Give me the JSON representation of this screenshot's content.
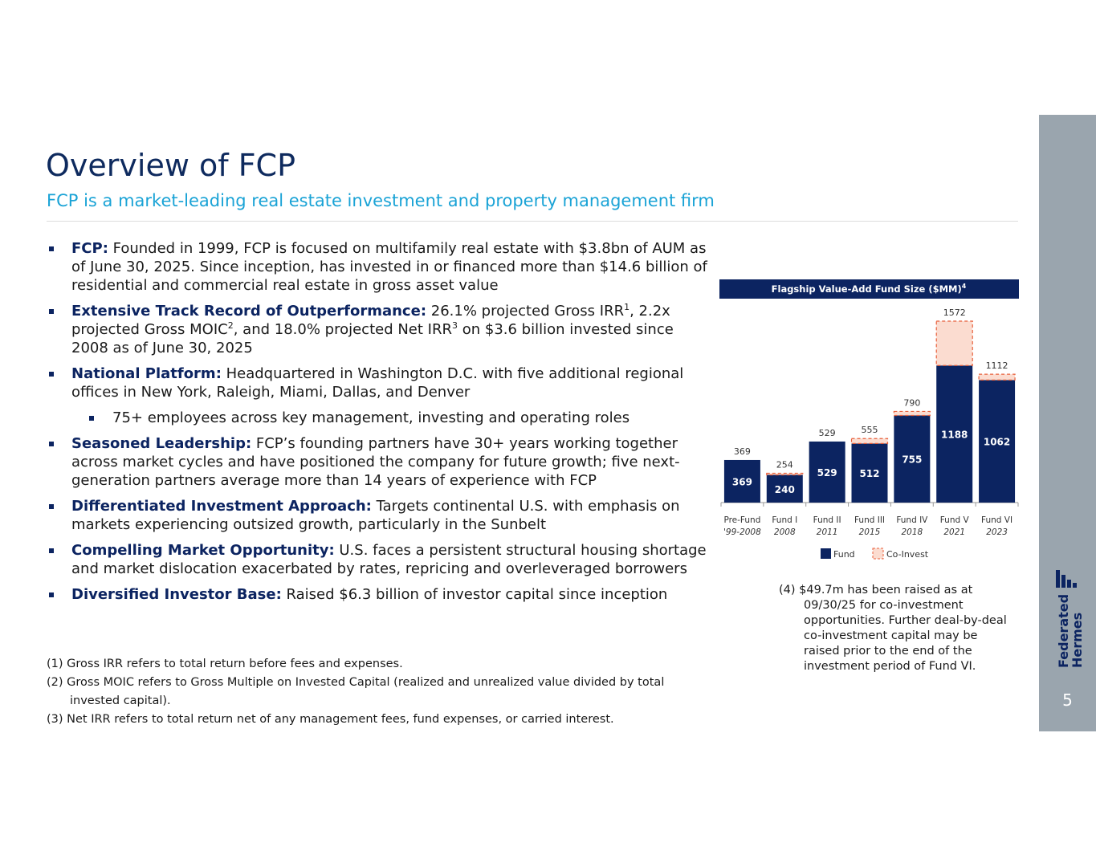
{
  "header": {
    "title": "Overview of FCP",
    "subtitle": "FCP is a market-leading real estate investment and property management firm"
  },
  "bullets": [
    {
      "lead": "FCP:",
      "text": [
        " Founded in 1999, FCP is focused on multifamily real estate with $3.8bn of AUM as of June 30, 2025. Since inception, has invested in or financed more than $14.6 billion of residential and commercial real estate in gross asset value"
      ]
    },
    {
      "lead": "Extensive Track Record of Outperformance:",
      "text": [
        " 26.1% projected Gross IRR",
        ", 2.2x projected Gross MOIC",
        ", and 18.0% projected Net IRR",
        " on $3.6 billion invested since 2008 as of June 30, 2025"
      ],
      "sups": [
        "1",
        "2",
        "3"
      ]
    },
    {
      "lead": "National Platform:",
      "text": [
        " Headquartered in Washington D.C. with five additional regional offices in New York, Raleigh, Miami, Dallas, and Denver"
      ]
    },
    {
      "sub": true,
      "text": [
        "75+ employees across key management, investing and operating roles"
      ]
    },
    {
      "lead": "Seasoned Leadership:",
      "text": [
        " FCP’s founding partners have 30+ years working together across market cycles and have positioned the company for future growth; five next-generation partners average more than 14 years of experience with FCP"
      ]
    },
    {
      "lead": "Differentiated Investment Approach:",
      "text": [
        " Targets continental U.S. with emphasis on markets experiencing outsized growth, particularly in the Sunbelt"
      ]
    },
    {
      "lead": "Compelling Market Opportunity:",
      "text": [
        " U.S. faces a persistent structural housing shortage and market dislocation exacerbated by rates, repricing and overleveraged borrowers"
      ]
    },
    {
      "lead": "Diversified Investor Base:",
      "text": [
        " Raised $6.3 billion of investor capital since inception"
      ]
    }
  ],
  "footnotes": [
    "(1) Gross IRR refers to total return before fees and expenses.",
    "(2) Gross MOIC refers to Gross Multiple on Invested Capital (realized and unrealized value divided by total invested capital).",
    "(3) Net IRR refers to total return net of any management fees, fund expenses, or carried interest."
  ],
  "chart_data": {
    "type": "stacked_bar",
    "title": "Flagship Value-Add Fund Size ($MM)",
    "title_sup": "4",
    "categories": [
      "Pre-Fund",
      "Fund I",
      "Fund II",
      "Fund III",
      "Fund IV",
      "Fund V",
      "Fund VI"
    ],
    "subcategories": [
      "'99-2008",
      "2008",
      "2011",
      "2015",
      "2018",
      "2021",
      "2023"
    ],
    "series": [
      {
        "name": "Fund",
        "color": "#0c2461",
        "values": [
          369,
          240,
          529,
          512,
          755,
          1188,
          1062
        ]
      },
      {
        "name": "Co-Invest",
        "color": "#fbdcd0",
        "values": [
          0,
          14,
          0,
          43,
          35,
          384,
          50
        ]
      }
    ],
    "totals": [
      369,
      254,
      529,
      555,
      790,
      1572,
      1112
    ],
    "ylim": [
      0,
      1600
    ]
  },
  "chart_note": "(4) $49.7m has been raised as at 09/30/25 for co-investment opportunities. Further deal-by-deal co-investment capital may be raised prior to the end of the investment period of Fund VI.",
  "brand": [
    "Federated",
    "Hermes"
  ],
  "page_number": "5"
}
